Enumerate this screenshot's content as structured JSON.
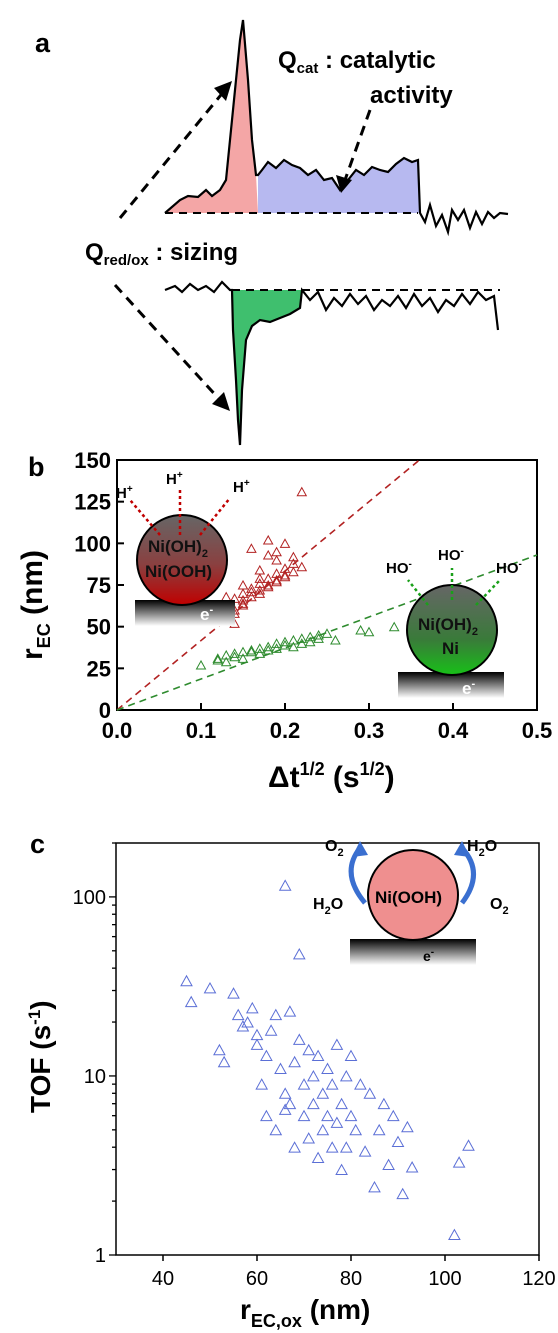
{
  "panel_labels": {
    "a": "a",
    "b": "b",
    "c": "c"
  },
  "panel_a": {
    "q_cat_main": "Q",
    "q_cat_sub": "cat",
    "q_cat_desc": " : catalytic",
    "q_cat_desc2": "activity",
    "q_redox_main": "Q",
    "q_redox_sub": "red/ox",
    "q_redox_desc": " : sizing",
    "colors": {
      "peak": "#f4a6a6",
      "catalytic": "#b7b9f0",
      "reduction": "#3fbf6e"
    }
  },
  "panel_b": {
    "inset_red": {
      "h_plus": "H",
      "h_plus_sup": "+",
      "layer1": "Ni(OH)",
      "layer1_sub": "2",
      "layer2": "Ni(OOH)",
      "electron": "e",
      "electron_sup": "-"
    },
    "inset_green": {
      "ho": "HO",
      "ho_sup": "-",
      "layer1": "Ni(OH)",
      "layer1_sub": "2",
      "layer2": "Ni",
      "electron": "e",
      "electron_sup": "-"
    }
  },
  "panel_c": {
    "inset": {
      "o2": "O",
      "o2_sub": "2",
      "h2o_h": "H",
      "h2o_sub": "2",
      "h2o_o": "O",
      "particle": "Ni(OOH)",
      "electron": "e",
      "electron_sup": "-"
    }
  },
  "chart_data": [
    {
      "type": "scatter",
      "panel": "b",
      "xlabel": "Δt",
      "xlabel_sup": "1/2",
      "xlabel_unit": " (s",
      "xlabel_unit_sup": "1/2",
      "xlabel_close": ")",
      "ylabel": "r",
      "ylabel_sub": "EC",
      "ylabel_unit": " (nm)",
      "xlim": [
        0.0,
        0.5
      ],
      "ylim": [
        0,
        150
      ],
      "xticks": [
        "0.0",
        "0.1",
        "0.2",
        "0.3",
        "0.4",
        "0.5"
      ],
      "yticks": [
        "0",
        "25",
        "50",
        "75",
        "100",
        "125",
        "150"
      ],
      "series": [
        {
          "color": "#b22222",
          "marker": "triangle",
          "x": [
            0.13,
            0.14,
            0.15,
            0.16,
            0.17,
            0.18,
            0.19,
            0.2,
            0.21,
            0.14,
            0.15,
            0.16,
            0.17,
            0.18,
            0.19,
            0.2,
            0.13,
            0.15,
            0.17,
            0.19,
            0.21,
            0.14,
            0.16,
            0.18,
            0.2,
            0.22,
            0.13,
            0.15,
            0.17,
            0.19,
            0.16,
            0.18,
            0.2,
            0.14,
            0.17,
            0.19,
            0.21,
            0.15,
            0.18,
            0.22
          ],
          "y": [
            62,
            67,
            70,
            73,
            76,
            79,
            82,
            85,
            88,
            58,
            64,
            68,
            72,
            75,
            78,
            80,
            55,
            66,
            70,
            77,
            83,
            60,
            71,
            74,
            81,
            86,
            68,
            63,
            79,
            90,
            97,
            93,
            100,
            52,
            84,
            95,
            92,
            75,
            102,
            131
          ]
        },
        {
          "color": "#2e8b2e",
          "marker": "triangle",
          "x": [
            0.1,
            0.12,
            0.13,
            0.14,
            0.15,
            0.16,
            0.17,
            0.18,
            0.19,
            0.2,
            0.21,
            0.22,
            0.23,
            0.24,
            0.25,
            0.12,
            0.14,
            0.16,
            0.18,
            0.2,
            0.22,
            0.24,
            0.13,
            0.15,
            0.17,
            0.19,
            0.21,
            0.23,
            0.26,
            0.29,
            0.3,
            0.33
          ],
          "y": [
            27,
            31,
            33,
            34,
            35,
            36,
            37,
            38,
            40,
            41,
            42,
            43,
            44,
            45,
            46,
            30,
            32,
            35,
            36,
            39,
            40,
            43,
            29,
            31,
            34,
            37,
            38,
            41,
            42,
            48,
            47,
            50
          ]
        }
      ],
      "fit_lines": [
        {
          "color": "#b22222",
          "x": [
            0.0,
            0.36
          ],
          "y": [
            0,
            150
          ]
        },
        {
          "color": "#2e8b2e",
          "x": [
            0.0,
            0.5
          ],
          "y": [
            0,
            93
          ]
        }
      ]
    },
    {
      "type": "scatter",
      "panel": "c",
      "xlabel": "r",
      "xlabel_sub": "EC,ox",
      "xlabel_unit": " (nm)",
      "ylabel": "TOF",
      "ylabel_unit": " (s",
      "ylabel_unit_sup": "-1",
      "ylabel_close": ")",
      "xlim": [
        30,
        120
      ],
      "ylim": [
        1,
        200
      ],
      "yscale": "log",
      "xticks": [
        "40",
        "60",
        "80",
        "100",
        "120"
      ],
      "yticks": [
        "1",
        "10",
        "100"
      ],
      "series": [
        {
          "color": "#5b6fd6",
          "marker": "triangle",
          "x": [
            45,
            46,
            50,
            52,
            53,
            55,
            56,
            57,
            58,
            59,
            60,
            61,
            62,
            62,
            63,
            64,
            65,
            66,
            66,
            67,
            67,
            68,
            68,
            69,
            70,
            70,
            71,
            71,
            72,
            72,
            73,
            73,
            74,
            74,
            75,
            75,
            76,
            76,
            77,
            77,
            78,
            78,
            79,
            79,
            80,
            80,
            81,
            82,
            83,
            84,
            85,
            86,
            87,
            88,
            89,
            90,
            91,
            92,
            93,
            102,
            103,
            105,
            66,
            69,
            60,
            64
          ],
          "y": [
            34,
            26,
            31,
            14,
            12,
            29,
            22,
            19,
            20,
            24,
            15,
            9,
            6,
            13,
            18,
            5,
            11,
            8,
            116,
            23,
            7,
            12,
            4,
            16,
            9,
            6,
            14,
            4.5,
            10,
            7,
            3.5,
            13,
            8,
            5,
            11,
            6,
            4,
            9,
            15,
            5.5,
            7,
            3,
            10,
            4,
            6,
            13,
            5,
            9,
            3.8,
            8,
            2.4,
            5,
            7,
            3.2,
            6,
            4.3,
            2.2,
            5.2,
            3.1,
            1.3,
            3.3,
            4.1,
            6.5,
            48,
            17,
            22
          ]
        }
      ]
    }
  ]
}
